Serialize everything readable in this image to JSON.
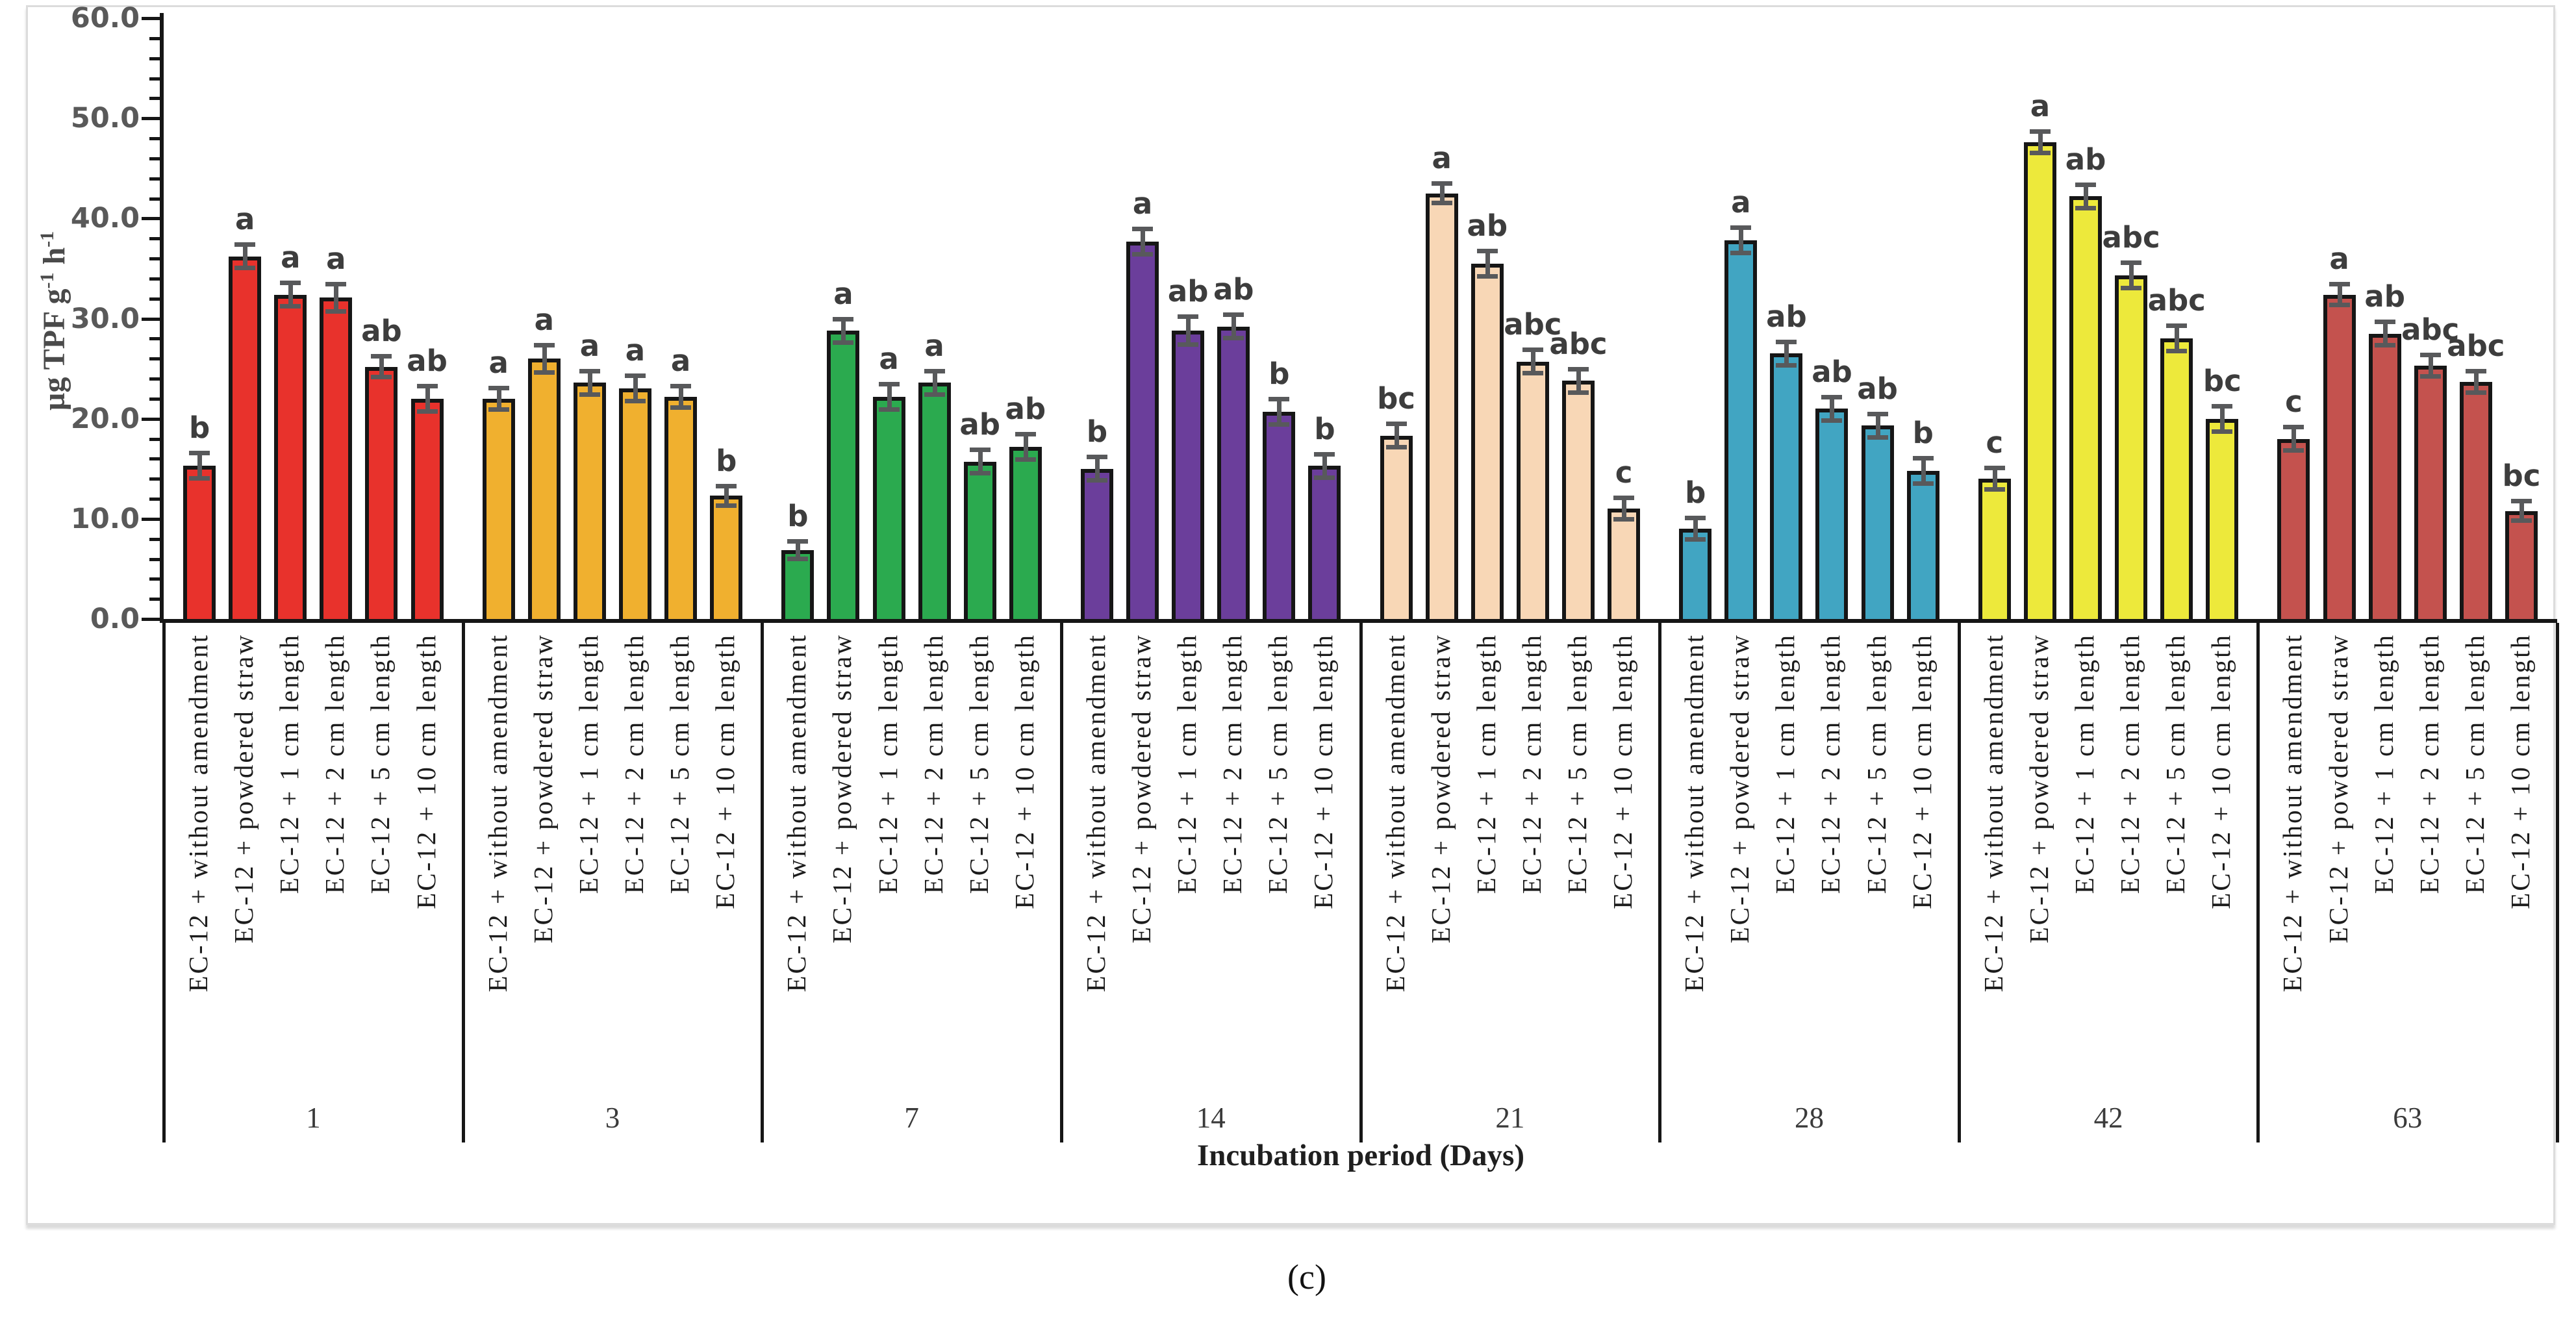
{
  "figure_caption": "(c)",
  "y_axis": {
    "title_parts": {
      "p1": "µg TPF g",
      "s1": "-1",
      "p2": " h",
      "s2": "-1"
    },
    "tick_labels": [
      "0.0",
      "10.0",
      "20.0",
      "30.0",
      "40.0",
      "50.0",
      "60.0"
    ]
  },
  "x_axis": {
    "title": "Incubation period (Days)"
  },
  "chart_data": {
    "type": "bar",
    "title": "",
    "ylabel": "µg TPF g-1 h-1",
    "xlabel": "Incubation period (Days)",
    "ylim": [
      0,
      60
    ],
    "y_major_step": 10,
    "y_minor_step": 2,
    "grid": false,
    "error_bars": true,
    "categories": [
      "EC-12 + without amendment",
      "EC-12 + powdered straw",
      "EC-12 + 1 cm length",
      "EC-12 + 2 cm length",
      "EC-12 + 5 cm length",
      "EC-12 + 10 cm length"
    ],
    "groups": [
      {
        "day": "1",
        "color": "#e8322c",
        "values": [
          15.3,
          36.2,
          32.4,
          32.1,
          25.2,
          22.0
        ],
        "errors": [
          1.3,
          1.2,
          1.2,
          1.4,
          1.1,
          1.3
        ],
        "letters": [
          "b",
          "a",
          "a",
          "a",
          "ab",
          "ab"
        ]
      },
      {
        "day": "3",
        "color": "#f0b02f",
        "values": [
          22.0,
          26.0,
          23.6,
          23.0,
          22.2,
          12.3
        ],
        "errors": [
          1.1,
          1.4,
          1.2,
          1.3,
          1.1,
          1.0
        ],
        "letters": [
          "a",
          "a",
          "a",
          "a",
          "a",
          "b"
        ]
      },
      {
        "day": "7",
        "color": "#2baa4f",
        "values": [
          6.9,
          28.8,
          22.2,
          23.6,
          15.7,
          17.2
        ],
        "errors": [
          0.9,
          1.2,
          1.3,
          1.2,
          1.2,
          1.3
        ],
        "letters": [
          "b",
          "a",
          "a",
          "a",
          "ab",
          "ab"
        ]
      },
      {
        "day": "14",
        "color": "#6b3e9b",
        "values": [
          15.0,
          37.7,
          28.8,
          29.2,
          20.7,
          15.3
        ],
        "errors": [
          1.2,
          1.3,
          1.4,
          1.2,
          1.3,
          1.2
        ],
        "letters": [
          "b",
          "a",
          "ab",
          "ab",
          "b",
          "b"
        ]
      },
      {
        "day": "21",
        "color": "#f8d7b6",
        "values": [
          18.3,
          42.5,
          35.5,
          25.7,
          23.8,
          11.0
        ],
        "errors": [
          1.2,
          1.0,
          1.3,
          1.2,
          1.2,
          1.1
        ],
        "letters": [
          "bc",
          "a",
          "ab",
          "abc",
          "abc",
          "c"
        ]
      },
      {
        "day": "28",
        "color": "#41a5c2",
        "values": [
          9.0,
          37.8,
          26.5,
          21.0,
          19.3,
          14.8
        ],
        "errors": [
          1.1,
          1.3,
          1.2,
          1.2,
          1.2,
          1.3
        ],
        "letters": [
          "b",
          "a",
          "ab",
          "ab",
          "ab",
          "b"
        ]
      },
      {
        "day": "42",
        "color": "#ede93b",
        "values": [
          14.0,
          47.6,
          42.2,
          34.3,
          28.0,
          20.0
        ],
        "errors": [
          1.1,
          1.1,
          1.2,
          1.3,
          1.3,
          1.3
        ],
        "letters": [
          "c",
          "a",
          "ab",
          "abc",
          "abc",
          "bc"
        ]
      },
      {
        "day": "63",
        "color": "#c4524e",
        "values": [
          18.0,
          32.4,
          28.5,
          25.3,
          23.7,
          10.8
        ],
        "errors": [
          1.2,
          1.1,
          1.2,
          1.1,
          1.1,
          1.0
        ],
        "letters": [
          "c",
          "a",
          "ab",
          "abc",
          "abc",
          "bc"
        ]
      }
    ]
  }
}
